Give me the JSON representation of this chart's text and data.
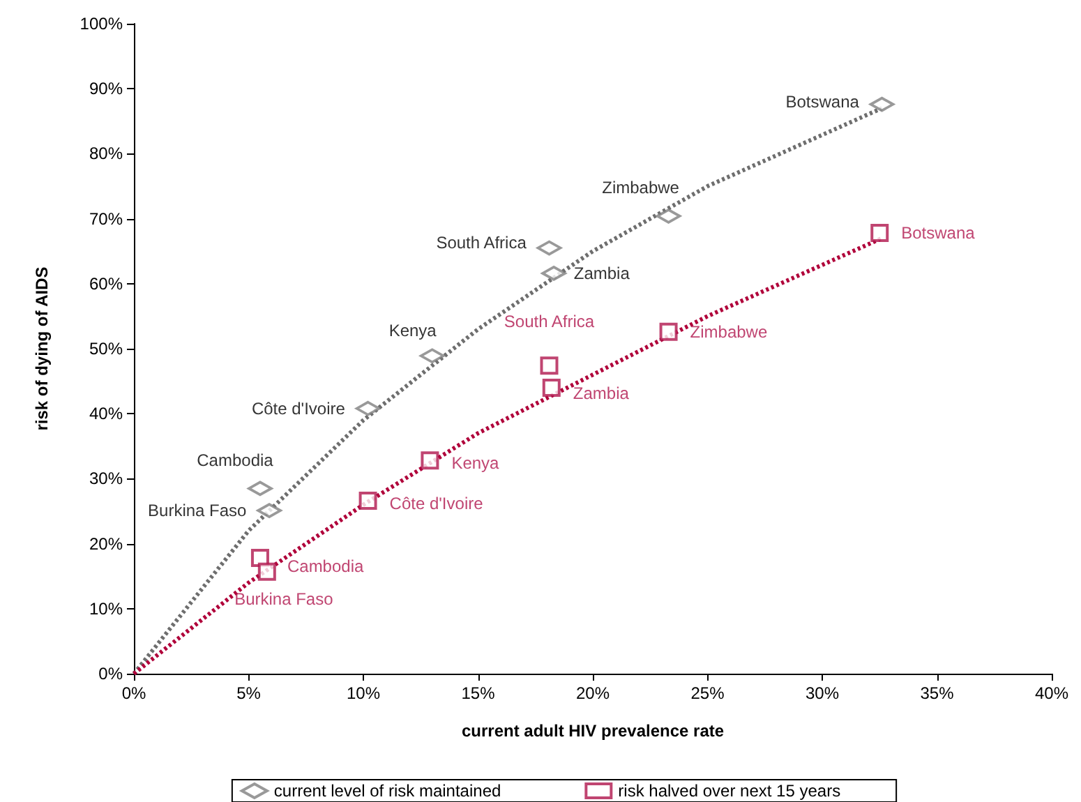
{
  "chart_data": {
    "type": "scatter",
    "xlabel": "current adult HIV prevalence rate",
    "ylabel": "risk of dying of AIDS",
    "xlim": [
      0,
      40
    ],
    "ylim": [
      0,
      100
    ],
    "xticks": [
      {
        "value": 0,
        "label": "0%"
      },
      {
        "value": 5,
        "label": "5%"
      },
      {
        "value": 10,
        "label": "10%"
      },
      {
        "value": 15,
        "label": "15%"
      },
      {
        "value": 20,
        "label": "20%"
      },
      {
        "value": 25,
        "label": "25%"
      },
      {
        "value": 30,
        "label": "30%"
      },
      {
        "value": 35,
        "label": "35%"
      },
      {
        "value": 40,
        "label": "40%"
      }
    ],
    "yticks": [
      {
        "value": 0,
        "label": "0%"
      },
      {
        "value": 10,
        "label": "10%"
      },
      {
        "value": 20,
        "label": "20%"
      },
      {
        "value": 30,
        "label": "30%"
      },
      {
        "value": 40,
        "label": "40%"
      },
      {
        "value": 50,
        "label": "50%"
      },
      {
        "value": 60,
        "label": "60%"
      },
      {
        "value": 70,
        "label": "70%"
      },
      {
        "value": 80,
        "label": "80%"
      },
      {
        "value": 90,
        "label": "90%"
      },
      {
        "value": 100,
        "label": "100%"
      }
    ],
    "grid": false,
    "legend": "bottom",
    "series": [
      {
        "type": "line",
        "color": "#6e6e6e",
        "marker": "none",
        "line_style": "dotted",
        "x": [
          0,
          5,
          10,
          15,
          20,
          25,
          32.6
        ],
        "values": [
          0,
          22,
          39,
          53,
          65,
          75,
          87
        ]
      },
      {
        "type": "line",
        "color": "#b0003a",
        "marker": "none",
        "line_style": "dotted",
        "x": [
          0,
          5,
          10,
          15,
          20,
          25,
          32.6
        ],
        "values": [
          0,
          14,
          26,
          37,
          46,
          55,
          67
        ]
      },
      {
        "name": "current level of risk maintained",
        "color": "#808080",
        "marker": "diamond",
        "x": [
          32.6,
          23.3,
          18.1,
          18.3,
          13.0,
          10.2,
          5.5,
          5.9
        ],
        "values": [
          87.6,
          70.4,
          65.5,
          61.6,
          48.9,
          40.8,
          28.5,
          25.1
        ],
        "value_labels": [
          "Botswana",
          "Zimbabwe",
          "South Africa",
          "Zambia",
          "Kenya",
          "Côte d'Ivoire",
          "Cambodia",
          "Burkina Faso"
        ]
      },
      {
        "name": "risk halved over next 15 years",
        "color": "#b0164e",
        "marker": "square",
        "x": [
          32.5,
          23.3,
          18.1,
          18.2,
          12.9,
          10.2,
          5.5,
          5.8
        ],
        "values": [
          67.8,
          52.6,
          47.4,
          44.0,
          32.8,
          26.6,
          17.8,
          15.7
        ],
        "value_labels": [
          "Botswana",
          "Zimbabwe",
          "South Africa",
          "Zambia",
          "Kenya",
          "Côte d'Ivoire",
          "Cambodia",
          "Burkina Faso"
        ]
      }
    ]
  }
}
